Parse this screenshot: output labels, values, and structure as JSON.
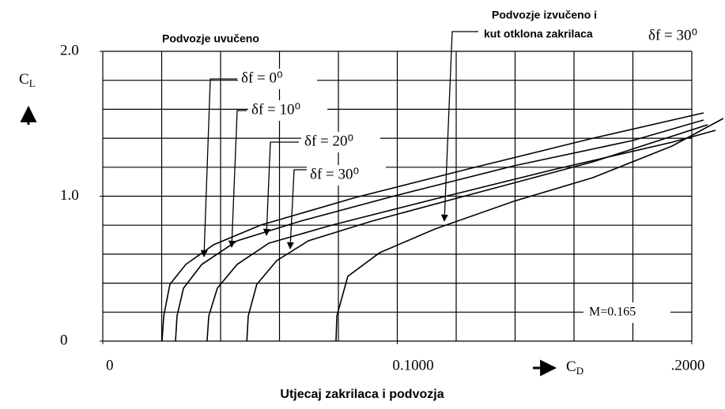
{
  "chart_data": {
    "type": "line",
    "title": "Utjecaj zakrilaca i podvozja",
    "xlabel": {
      "main": "C",
      "sub": "D"
    },
    "ylabel": {
      "main": "C",
      "sub": "L"
    },
    "xlim": [
      0,
      0.21
    ],
    "ylim": [
      0,
      2.0
    ],
    "xticks": [
      0,
      {
        "value": 0.1,
        "label": "0.1000"
      },
      {
        "value": 0.2,
        "label": ".2000"
      }
    ],
    "yticks": [
      0,
      {
        "value": 1.0,
        "label": "1.0"
      },
      {
        "value": 2.0,
        "label": "2.0"
      }
    ],
    "xgrid": [
      0,
      0.02,
      0.04,
      0.06,
      0.08,
      0.1,
      0.12,
      0.14,
      0.16,
      0.18,
      0.2
    ],
    "ygrid": [
      0,
      0.2,
      0.4,
      0.6,
      0.8,
      1.0,
      1.2,
      1.4,
      1.6,
      1.8,
      2.0
    ],
    "grid": true,
    "annotations": [
      "Podvozje uvučeno",
      "Podvozje izvučeno i",
      "kut otklona zakrilaca",
      "δf = 30⁰",
      "M=0.165"
    ],
    "series": [
      {
        "name": "δf = 0⁰",
        "color": "#000000",
        "x": [
          0.0201,
          0.0207,
          0.0228,
          0.0282,
          0.0376,
          0.0537,
          0.0859,
          0.1262,
          0.1664,
          0.204
        ],
        "values": [
          0,
          0.174,
          0.392,
          0.529,
          0.665,
          0.801,
          0.992,
          1.199,
          1.4,
          1.575
        ]
      },
      {
        "name": "δf = 10⁰",
        "color": "#000000",
        "x": [
          0.0247,
          0.0252,
          0.0274,
          0.0336,
          0.0456,
          0.0671,
          0.0993,
          0.1396,
          0.1799,
          0.204
        ],
        "values": [
          0,
          0.174,
          0.365,
          0.529,
          0.692,
          0.828,
          1.003,
          1.21,
          1.384,
          1.526
        ]
      },
      {
        "name": "δf = 20⁰",
        "color": "#000000",
        "x": [
          0.0354,
          0.036,
          0.0389,
          0.0456,
          0.0564,
          0.0779,
          0.1128,
          0.153,
          0.1933,
          0.2081
        ],
        "values": [
          0,
          0.174,
          0.365,
          0.529,
          0.676,
          0.801,
          0.981,
          1.183,
          1.373,
          1.455
        ]
      },
      {
        "name": "δf = 30⁰",
        "color": "#000000",
        "x": [
          0.0489,
          0.0494,
          0.0523,
          0.0591,
          0.0698,
          0.0913,
          0.1262,
          0.1664,
          0.2054
        ],
        "values": [
          0,
          0.174,
          0.392,
          0.556,
          0.692,
          0.828,
          1.019,
          1.237,
          1.493
        ]
      },
      {
        "color": "#000000",
        "x": [
          0.0792,
          0.0795,
          0.0832,
          0.094,
          0.1128,
          0.1396,
          0.1664,
          0.1933,
          0.2107
        ],
        "values": [
          0,
          0.174,
          0.447,
          0.61,
          0.774,
          0.965,
          1.128,
          1.346,
          1.537
        ]
      }
    ]
  }
}
